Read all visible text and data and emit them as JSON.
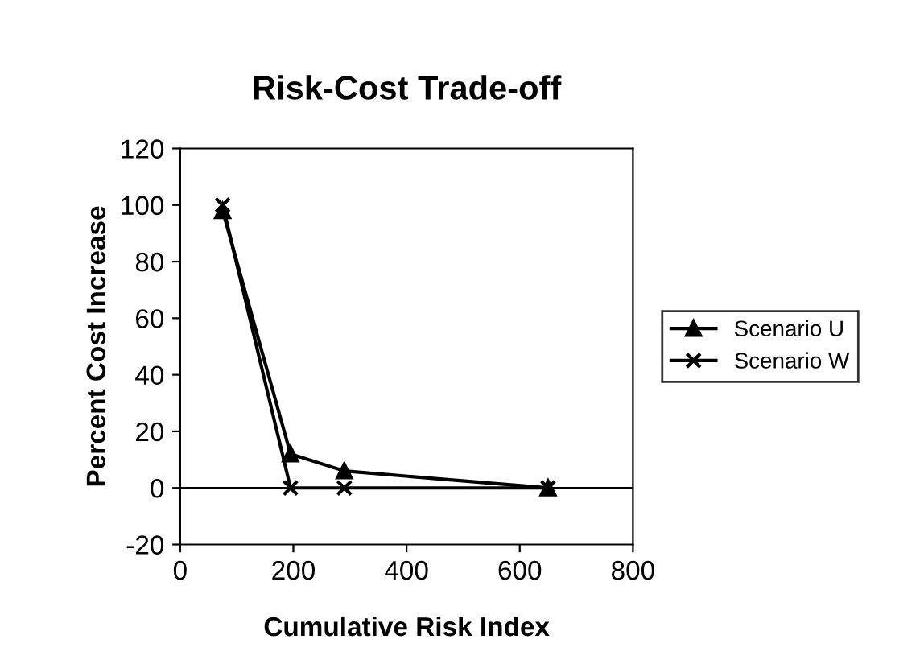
{
  "chart_data": {
    "type": "line",
    "title": "Risk-Cost Trade-off",
    "xlabel": "Cumulative Risk Index",
    "ylabel": "Percent Cost Increase",
    "xlim": [
      0,
      800
    ],
    "xticks": [
      0,
      200,
      400,
      600,
      800
    ],
    "ylim": [
      -20,
      120
    ],
    "yticks": [
      -20,
      0,
      20,
      40,
      60,
      80,
      100,
      120
    ],
    "grid": false,
    "legend": "right",
    "ref_lines": [
      {
        "axis": "y",
        "value": 0,
        "color": "#000000"
      }
    ],
    "series": [
      {
        "name": "Scenario U",
        "color": "#000000",
        "marker": "triangle",
        "x": [
          75,
          195,
          290,
          650
        ],
        "values": [
          98,
          12,
          6,
          0
        ]
      },
      {
        "name": "Scenario W",
        "color": "#000000",
        "marker": "cross",
        "x": [
          75,
          195,
          290,
          650
        ],
        "values": [
          100,
          0,
          0,
          0
        ]
      }
    ]
  }
}
